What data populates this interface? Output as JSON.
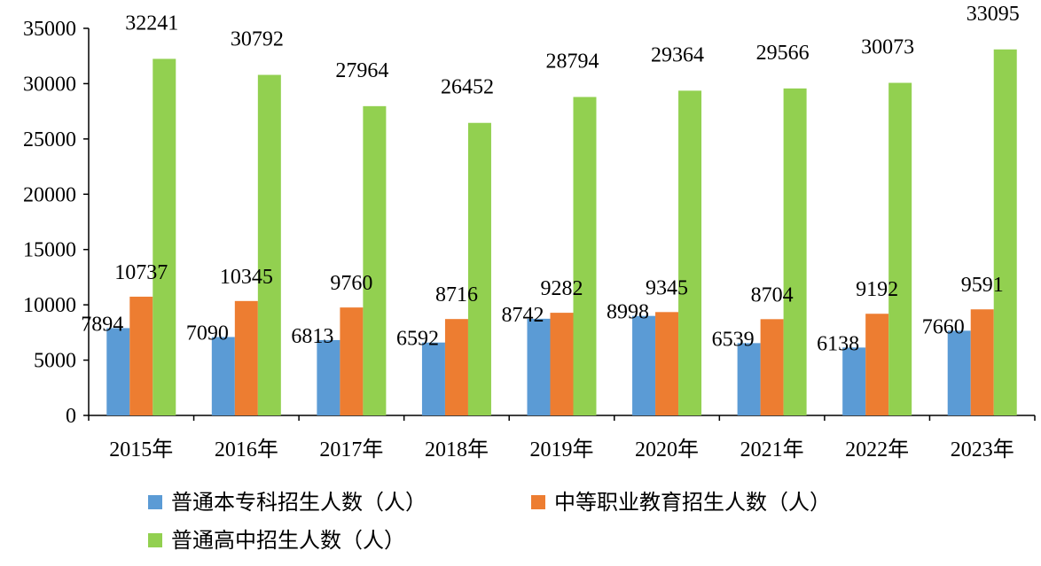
{
  "chart_data": {
    "type": "bar",
    "categories": [
      "2015年",
      "2016年",
      "2017年",
      "2018年",
      "2019年",
      "2020年",
      "2021年",
      "2022年",
      "2023年"
    ],
    "series": [
      {
        "name": "普通本专科招生人数（人）",
        "values": [
          7894,
          7090,
          6813,
          6592,
          8742,
          8998,
          6539,
          6138,
          7660
        ],
        "color": "#5b9bd5"
      },
      {
        "name": "中等职业教育招生人数（人）",
        "values": [
          10737,
          10345,
          9760,
          8716,
          9282,
          9345,
          8704,
          9192,
          9591
        ],
        "color": "#ed7d31"
      },
      {
        "name": "普通高中招生人数（人）",
        "values": [
          32241,
          30792,
          27964,
          26452,
          28794,
          29364,
          29566,
          30073,
          33095
        ],
        "color": "#92d050"
      }
    ],
    "yticks": [
      0,
      5000,
      10000,
      15000,
      20000,
      25000,
      30000,
      35000
    ],
    "ylim": [
      0,
      35000
    ],
    "grid": false,
    "legend_position": "bottom",
    "data_labels": true
  }
}
